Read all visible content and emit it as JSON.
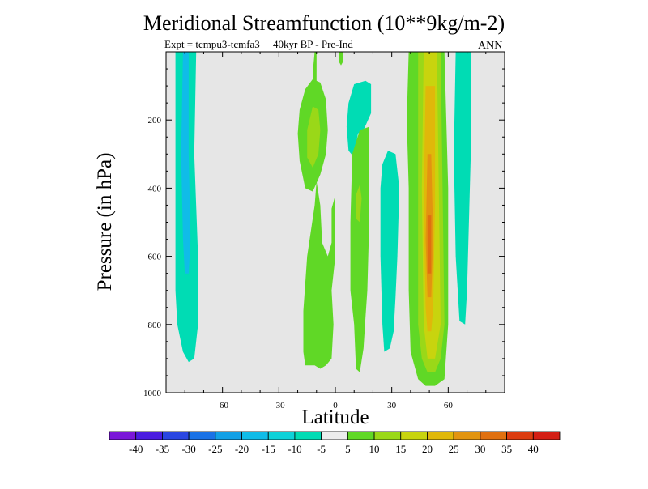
{
  "chart_data": {
    "type": "heatmap",
    "title": "Meridional Streamfunction (10**9kg/m-2)",
    "subtitle": "Expt = tcmpu3-tcmfa3     40kyr BP - Pre-Ind",
    "season_label": "ANN",
    "xlabel": "Latitude",
    "ylabel": "Pressure (in hPa)",
    "x_axis": {
      "range": [
        -90,
        90
      ],
      "ticks": [
        -60,
        -30,
        0,
        30,
        60
      ],
      "tick_labels": [
        "-60",
        "-30",
        "0",
        "30",
        "60"
      ]
    },
    "y_axis": {
      "range": [
        1000,
        0
      ],
      "inverted": true,
      "ticks": [
        200,
        400,
        600,
        800,
        1000
      ],
      "tick_labels": [
        "200",
        "400",
        "600",
        "800",
        "1000"
      ]
    },
    "background_color": "#e6e6e6",
    "colorbar": {
      "levels": [
        -40,
        -35,
        -30,
        -25,
        -20,
        -15,
        -10,
        -5,
        5,
        10,
        15,
        20,
        25,
        30,
        35,
        40
      ],
      "labels": [
        "-40",
        "-35",
        "-30",
        "-25",
        "-20",
        "-15",
        "-10",
        "-5",
        "5",
        "10",
        "15",
        "20",
        "25",
        "30",
        "35",
        "40"
      ],
      "colors": [
        "#7a16d8",
        "#4a1ce0",
        "#2a46e2",
        "#1a72e6",
        "#12a0e6",
        "#10bce8",
        "#0ed2d8",
        "#00dcb4",
        "#ececec",
        "#60d826",
        "#9ad818",
        "#c8d40e",
        "#e0b80a",
        "#e29410",
        "#e07010",
        "#dc3c10",
        "#d41e14"
      ]
    },
    "regions": [
      {
        "name": "sh-cell-outer",
        "value": -10,
        "color": "#00dcb4",
        "points": [
          [
            -84,
            0
          ],
          [
            -74,
            0
          ],
          [
            -75,
            300
          ],
          [
            -73,
            600
          ],
          [
            -73,
            800
          ],
          [
            -75,
            900
          ],
          [
            -78,
            910
          ],
          [
            -81,
            880
          ],
          [
            -84,
            800
          ],
          [
            -85,
            700
          ],
          [
            -85,
            400
          ],
          [
            -85,
            0
          ]
        ]
      },
      {
        "name": "sh-cell-inner",
        "value": -15,
        "color": "#10bce8",
        "points": [
          [
            -81,
            0
          ],
          [
            -78,
            0
          ],
          [
            -78,
            300
          ],
          [
            -77,
            550
          ],
          [
            -78,
            650
          ],
          [
            -80,
            650
          ],
          [
            -81,
            550
          ],
          [
            -82,
            300
          ]
        ]
      },
      {
        "name": "tropical-upper-cell",
        "value": 5,
        "color": "#60d826",
        "points": [
          [
            -19,
            170
          ],
          [
            -16,
            110
          ],
          [
            -12,
            80
          ],
          [
            -8,
            90
          ],
          [
            -5,
            140
          ],
          [
            -4,
            230
          ],
          [
            -5,
            300
          ],
          [
            -8,
            360
          ],
          [
            -12,
            410
          ],
          [
            -16,
            400
          ],
          [
            -19,
            320
          ],
          [
            -20,
            240
          ]
        ]
      },
      {
        "name": "tropical-upper-core",
        "value": 10,
        "color": "#9ad818",
        "points": [
          [
            -15,
            230
          ],
          [
            -12,
            160
          ],
          [
            -9,
            170
          ],
          [
            -8,
            230
          ],
          [
            -9,
            300
          ],
          [
            -12,
            340
          ],
          [
            -15,
            310
          ]
        ]
      },
      {
        "name": "tropical-top-sliver",
        "value": 5,
        "color": "#60d826",
        "points": [
          [
            -11,
            0
          ],
          [
            -10,
            0
          ],
          [
            -10,
            90
          ],
          [
            -12,
            110
          ],
          [
            -12,
            60
          ]
        ]
      },
      {
        "name": "equatorial-top-sliver",
        "value": 5,
        "color": "#60d826",
        "points": [
          [
            2,
            0
          ],
          [
            4,
            0
          ],
          [
            4,
            30
          ],
          [
            3,
            40
          ],
          [
            2,
            30
          ]
        ]
      },
      {
        "name": "nh-upper-tropical",
        "value": -5,
        "color": "#00dcb4",
        "points": [
          [
            7,
            150
          ],
          [
            10,
            95
          ],
          [
            16,
            85
          ],
          [
            19,
            95
          ],
          [
            19,
            180
          ],
          [
            15,
            230
          ],
          [
            12,
            240
          ],
          [
            10,
            310
          ],
          [
            7,
            290
          ],
          [
            6,
            220
          ]
        ]
      },
      {
        "name": "tropical-lower-west",
        "value": 5,
        "color": "#60d826",
        "points": [
          [
            -17,
            760
          ],
          [
            -15,
            600
          ],
          [
            -11,
            450
          ],
          [
            -10,
            380
          ],
          [
            -8,
            450
          ],
          [
            -7,
            560
          ],
          [
            -4,
            600
          ],
          [
            -2,
            560
          ],
          [
            -2,
            460
          ],
          [
            0,
            420
          ],
          [
            0,
            600
          ],
          [
            -2,
            700
          ],
          [
            -1,
            800
          ],
          [
            -2,
            900
          ],
          [
            -5,
            920
          ],
          [
            -8,
            930
          ],
          [
            -11,
            920
          ],
          [
            -16,
            920
          ],
          [
            -17,
            880
          ]
        ]
      },
      {
        "name": "tropical-lower-east",
        "value": 5,
        "color": "#60d826",
        "points": [
          [
            9,
            300
          ],
          [
            13,
            230
          ],
          [
            18,
            220
          ],
          [
            18,
            500
          ],
          [
            17,
            700
          ],
          [
            16,
            780
          ],
          [
            15,
            870
          ],
          [
            13,
            940
          ],
          [
            11,
            930
          ],
          [
            10,
            800
          ],
          [
            8,
            700
          ],
          [
            8,
            500
          ]
        ]
      },
      {
        "name": "tropical-lower-east-core",
        "value": 10,
        "color": "#9ad818",
        "points": [
          [
            11,
            420
          ],
          [
            13,
            390
          ],
          [
            14,
            430
          ],
          [
            13,
            500
          ],
          [
            11,
            490
          ]
        ]
      },
      {
        "name": "nh-subtropical-cell",
        "value": -5,
        "color": "#00dcb4",
        "points": [
          [
            25,
            330
          ],
          [
            28,
            290
          ],
          [
            32,
            300
          ],
          [
            34,
            400
          ],
          [
            33,
            600
          ],
          [
            32,
            720
          ],
          [
            31,
            820
          ],
          [
            29,
            870
          ],
          [
            26,
            880
          ],
          [
            25,
            800
          ],
          [
            24,
            600
          ],
          [
            24,
            400
          ]
        ]
      },
      {
        "name": "nh-jet-cell",
        "value": 5,
        "color": "#60d826",
        "points": [
          [
            39,
            0
          ],
          [
            58,
            0
          ],
          [
            60,
            400
          ],
          [
            60,
            800
          ],
          [
            58,
            960
          ],
          [
            53,
            980
          ],
          [
            48,
            980
          ],
          [
            44,
            960
          ],
          [
            40,
            880
          ],
          [
            39,
            700
          ],
          [
            39,
            400
          ],
          [
            38,
            200
          ]
        ]
      },
      {
        "name": "nh-jet-outer",
        "value": 10,
        "color": "#9ad818",
        "points": [
          [
            44,
            0
          ],
          [
            56,
            0
          ],
          [
            57,
            400
          ],
          [
            58,
            800
          ],
          [
            56,
            900
          ],
          [
            53,
            940
          ],
          [
            49,
            940
          ],
          [
            46,
            900
          ],
          [
            44,
            800
          ],
          [
            44,
            400
          ]
        ]
      },
      {
        "name": "nh-jet-mid",
        "value": 15,
        "color": "#c8d40e",
        "points": [
          [
            47,
            0
          ],
          [
            54,
            0
          ],
          [
            55,
            400
          ],
          [
            56,
            800
          ],
          [
            53,
            900
          ],
          [
            49,
            900
          ],
          [
            47,
            800
          ],
          [
            46,
            400
          ]
        ]
      },
      {
        "name": "nh-jet-inner",
        "value": 20,
        "color": "#e0b80a",
        "points": [
          [
            48,
            100
          ],
          [
            53,
            100
          ],
          [
            53,
            450
          ],
          [
            52,
            750
          ],
          [
            51,
            820
          ],
          [
            49,
            820
          ],
          [
            48,
            750
          ],
          [
            47,
            450
          ]
        ]
      },
      {
        "name": "nh-jet-core",
        "value": 25,
        "color": "#e29410",
        "points": [
          [
            49,
            300
          ],
          [
            51,
            300
          ],
          [
            52,
            550
          ],
          [
            51,
            720
          ],
          [
            49,
            720
          ],
          [
            48,
            550
          ]
        ]
      },
      {
        "name": "nh-jet-peak",
        "value": 30,
        "color": "#e07010",
        "points": [
          [
            49,
            480
          ],
          [
            51,
            480
          ],
          [
            51,
            650
          ],
          [
            49,
            650
          ]
        ]
      },
      {
        "name": "nh-polar-cell",
        "value": -5,
        "color": "#00dcb4",
        "points": [
          [
            64,
            0
          ],
          [
            72,
            0
          ],
          [
            72,
            300
          ],
          [
            71,
            500
          ],
          [
            70,
            700
          ],
          [
            69,
            800
          ],
          [
            66,
            790
          ],
          [
            64,
            600
          ],
          [
            63,
            300
          ]
        ]
      }
    ]
  }
}
